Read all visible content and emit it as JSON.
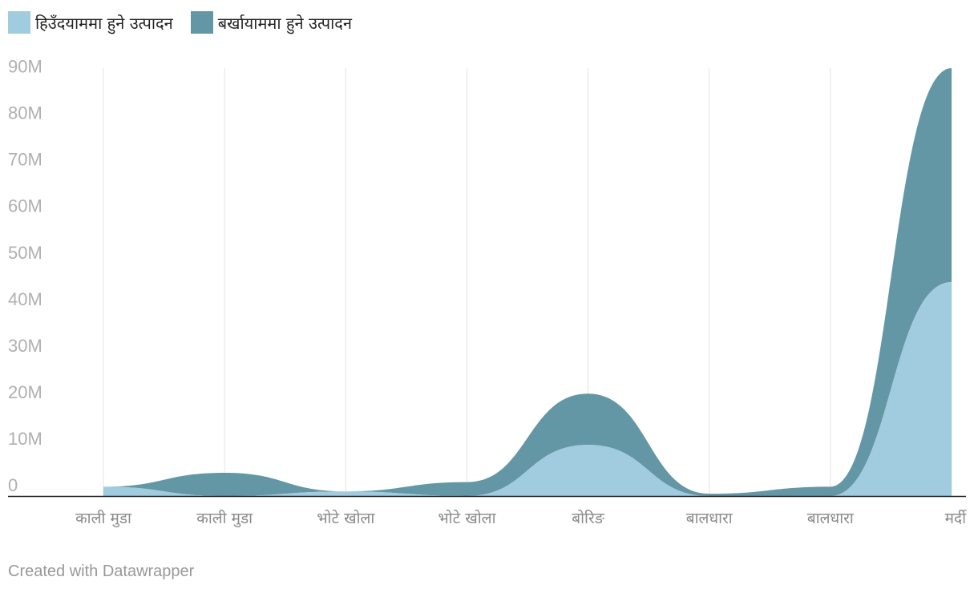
{
  "chart_data": {
    "type": "area",
    "stacked": true,
    "curve": "smooth",
    "categories": [
      "काली मुडा",
      "काली मुडा",
      "भोटे खोला",
      "भोटे खोला",
      "बोरिङ",
      "बालधारा",
      "बालधारा",
      "मर्दी"
    ],
    "series": [
      {
        "name": "हिउँदयाममा हुने उत्पादन",
        "color": "#a1cbde",
        "values": [
          2,
          0,
          1,
          0,
          11,
          0,
          0,
          46
        ]
      },
      {
        "name": "बर्खायाममा हुने उत्पादन",
        "color": "#6497a6",
        "values": [
          0,
          5,
          0,
          3,
          11,
          0.5,
          2,
          46
        ]
      }
    ],
    "ylim": [
      0,
      92
    ],
    "yticks": [
      0,
      10,
      20,
      30,
      40,
      50,
      60,
      70,
      80,
      90
    ],
    "ytick_labels": [
      "0",
      "10M",
      "20M",
      "30M",
      "40M",
      "50M",
      "60M",
      "70M",
      "80M",
      "90M"
    ],
    "grid": "vertical",
    "legend": "top-left"
  },
  "footer": {
    "credit": "Created with Datawrapper"
  }
}
